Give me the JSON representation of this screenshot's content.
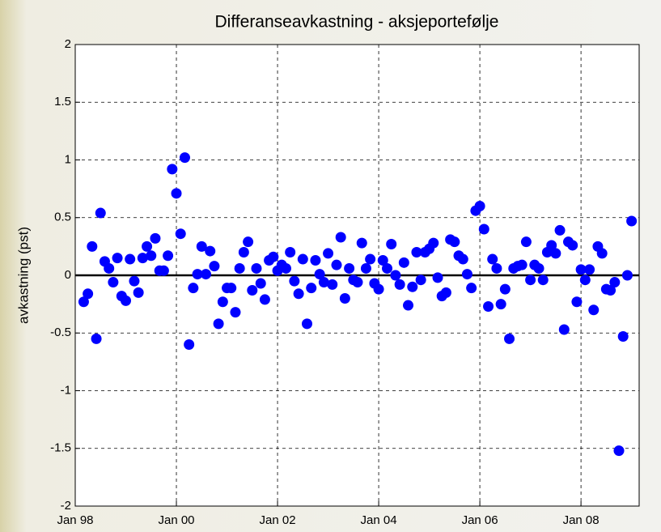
{
  "chart_data": {
    "type": "scatter",
    "title": "Differanseavkastning - aksjeportefølje",
    "y_label": "avkastning (pst)",
    "color": "#0000ff",
    "grid": true,
    "xlim": [
      1998,
      2009.15
    ],
    "ylim": [
      -2,
      2
    ],
    "xticks": [
      {
        "value": 1998,
        "label": "Jan 98"
      },
      {
        "value": 2000,
        "label": "Jan 00"
      },
      {
        "value": 2002,
        "label": "Jan 02"
      },
      {
        "value": 2004,
        "label": "Jan 04"
      },
      {
        "value": 2006,
        "label": "Jan 06"
      },
      {
        "value": 2008,
        "label": "Jan 08"
      }
    ],
    "yticks": [
      -2,
      -1.5,
      -1,
      -0.5,
      0,
      0.5,
      1,
      1.5,
      2
    ],
    "x": [
      1998.167,
      1998.25,
      1998.333,
      1998.417,
      1998.5,
      1998.583,
      1998.667,
      1998.75,
      1998.833,
      1998.917,
      1999.0,
      1999.083,
      1999.167,
      1999.25,
      1999.333,
      1999.417,
      1999.5,
      1999.583,
      1999.667,
      1999.75,
      1999.833,
      1999.917,
      2000.0,
      2000.083,
      2000.167,
      2000.25,
      2000.333,
      2000.417,
      2000.5,
      2000.583,
      2000.667,
      2000.75,
      2000.833,
      2000.917,
      2001.0,
      2001.083,
      2001.167,
      2001.25,
      2001.333,
      2001.417,
      2001.5,
      2001.583,
      2001.667,
      2001.75,
      2001.833,
      2001.917,
      2002.0,
      2002.083,
      2002.167,
      2002.25,
      2002.333,
      2002.417,
      2002.5,
      2002.583,
      2002.667,
      2002.75,
      2002.833,
      2002.917,
      2003.0,
      2003.083,
      2003.167,
      2003.25,
      2003.333,
      2003.417,
      2003.5,
      2003.583,
      2003.667,
      2003.75,
      2003.833,
      2003.917,
      2004.0,
      2004.083,
      2004.167,
      2004.25,
      2004.333,
      2004.417,
      2004.5,
      2004.583,
      2004.667,
      2004.75,
      2004.833,
      2004.917,
      2005.0,
      2005.083,
      2005.167,
      2005.25,
      2005.333,
      2005.417,
      2005.5,
      2005.583,
      2005.667,
      2005.75,
      2005.833,
      2005.917,
      2006.0,
      2006.083,
      2006.167,
      2006.25,
      2006.333,
      2006.417,
      2006.5,
      2006.583,
      2006.667,
      2006.75,
      2006.833,
      2006.917,
      2007.0,
      2007.083,
      2007.167,
      2007.25,
      2007.333,
      2007.417,
      2007.5,
      2007.583,
      2007.667,
      2007.75,
      2007.833,
      2007.917,
      2008.0,
      2008.083,
      2008.167,
      2008.25,
      2008.333,
      2008.417,
      2008.5,
      2008.583,
      2008.667,
      2008.75,
      2008.833,
      2008.917,
      2009.0
    ],
    "values": [
      -0.23,
      -0.16,
      0.25,
      -0.55,
      0.54,
      0.12,
      0.06,
      -0.06,
      0.15,
      -0.18,
      -0.22,
      0.14,
      -0.05,
      -0.15,
      0.15,
      0.25,
      0.17,
      0.32,
      0.04,
      0.04,
      0.17,
      0.92,
      0.71,
      0.36,
      1.02,
      -0.6,
      -0.11,
      0.01,
      0.25,
      0.01,
      0.21,
      0.08,
      -0.42,
      -0.23,
      -0.11,
      -0.11,
      -0.32,
      0.06,
      0.2,
      0.29,
      -0.13,
      0.06,
      -0.07,
      -0.21,
      0.13,
      0.16,
      0.04,
      0.09,
      0.06,
      0.2,
      -0.05,
      -0.16,
      0.14,
      -0.42,
      -0.11,
      0.13,
      0.01,
      -0.06,
      0.19,
      -0.08,
      0.09,
      0.33,
      -0.2,
      0.06,
      -0.04,
      -0.06,
      0.28,
      0.06,
      0.14,
      -0.07,
      -0.12,
      0.13,
      0.06,
      0.27,
      0.0,
      -0.08,
      0.11,
      -0.26,
      -0.1,
      0.2,
      -0.04,
      0.2,
      0.23,
      0.28,
      -0.02,
      -0.18,
      -0.15,
      0.31,
      0.29,
      0.17,
      0.14,
      0.01,
      -0.11,
      0.56,
      0.6,
      0.4,
      -0.27,
      0.14,
      0.06,
      -0.25,
      -0.12,
      -0.55,
      0.06,
      0.08,
      0.09,
      0.29,
      -0.04,
      0.09,
      0.06,
      -0.04,
      0.2,
      0.26,
      0.19,
      0.39,
      -0.47,
      0.29,
      0.26,
      -0.23,
      0.05,
      -0.04,
      0.05,
      -0.3,
      0.25,
      0.19,
      -0.12,
      -0.13,
      -0.06,
      -1.52,
      -0.53,
      0.0,
      0.47
    ]
  }
}
